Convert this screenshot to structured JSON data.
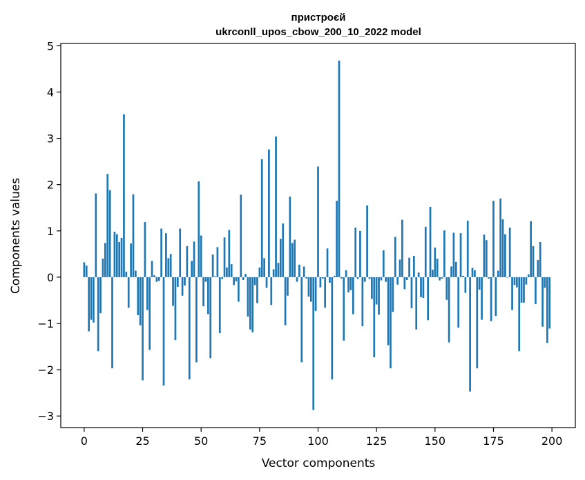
{
  "chart_data": {
    "type": "bar",
    "title": "пристроєй",
    "subtitle": "ukrconll_upos_cbow_200_10_2022 model",
    "xlabel": "Vector components",
    "ylabel": "Components values",
    "xlim": [
      -10,
      210
    ],
    "ylim": [
      -3.25,
      5.05
    ],
    "x_ticks": [
      0,
      25,
      50,
      75,
      100,
      125,
      150,
      175,
      200
    ],
    "y_ticks": [
      -3,
      -2,
      -1,
      0,
      1,
      2,
      3,
      4,
      5
    ],
    "x_tick_labels": [
      "0",
      "25",
      "50",
      "75",
      "100",
      "125",
      "150",
      "175",
      "200"
    ],
    "y_tick_labels": [
      "−3",
      "−2",
      "−1",
      "0",
      "1",
      "2",
      "3",
      "4",
      "5"
    ],
    "grid": false,
    "bar_color": "#1f77b4",
    "values": [
      0.32,
      0.25,
      -1.17,
      -0.92,
      -0.98,
      1.81,
      -1.6,
      -0.78,
      0.4,
      0.74,
      2.23,
      1.88,
      -1.97,
      0.98,
      0.93,
      0.76,
      0.85,
      3.52,
      0.12,
      -0.66,
      0.73,
      1.79,
      0.14,
      -0.82,
      -1.04,
      -2.23,
      1.19,
      -0.71,
      -1.57,
      0.35,
      0.04,
      -0.1,
      -0.08,
      1.05,
      -2.34,
      0.95,
      0.41,
      0.5,
      -0.62,
      -1.36,
      -0.21,
      1.05,
      -0.4,
      -0.18,
      0.67,
      -2.21,
      0.35,
      0.77,
      -1.84,
      2.07,
      0.9,
      -0.63,
      -0.1,
      -0.8,
      -1.75,
      0.49,
      0.02,
      0.65,
      -1.21,
      -0.04,
      0.86,
      0.21,
      1.02,
      0.28,
      -0.17,
      -0.09,
      -0.53,
      1.78,
      -0.06,
      0.07,
      -0.85,
      -1.13,
      -1.19,
      -0.17,
      -0.56,
      0.21,
      2.55,
      0.41,
      -0.23,
      2.76,
      -0.6,
      0.17,
      3.04,
      0.31,
      0.83,
      1.16,
      -1.04,
      -0.4,
      1.74,
      0.74,
      0.81,
      -0.1,
      0.27,
      -1.84,
      0.23,
      -0.03,
      -0.42,
      -0.53,
      -2.87,
      -0.73,
      2.39,
      -0.22,
      -0.03,
      -0.66,
      0.62,
      -0.12,
      -2.21,
      0.03,
      1.65,
      4.68,
      -0.03,
      -1.37,
      0.15,
      -0.33,
      -0.28,
      -0.8,
      1.07,
      -0.04,
      1.0,
      -1.06,
      -0.1,
      1.55,
      -0.04,
      -0.47,
      -1.73,
      -0.59,
      -0.81,
      -0.07,
      0.58,
      -0.1,
      -1.47,
      -1.97,
      -0.75,
      0.87,
      -0.16,
      0.38,
      1.24,
      -0.26,
      -0.06,
      0.42,
      -0.67,
      0.46,
      -1.13,
      0.1,
      -0.43,
      -0.45,
      1.09,
      -0.93,
      1.52,
      0.16,
      0.64,
      0.4,
      -0.07,
      -0.03,
      1.01,
      -0.49,
      -1.41,
      0.23,
      0.96,
      0.33,
      -1.09,
      0.95,
      0.03,
      -0.34,
      1.22,
      -2.47,
      0.2,
      0.15,
      -1.97,
      -0.27,
      -0.92,
      0.92,
      0.8,
      -0.03,
      -0.95,
      1.65,
      -0.84,
      0.14,
      1.7,
      1.25,
      0.93,
      -0.01,
      1.07,
      -0.71,
      -0.17,
      -0.22,
      -1.6,
      -0.55,
      -0.55,
      -0.16,
      0.06,
      1.21,
      0.67,
      -0.58,
      0.37,
      0.76,
      -1.07,
      -0.23,
      -1.42,
      -1.11
    ]
  }
}
